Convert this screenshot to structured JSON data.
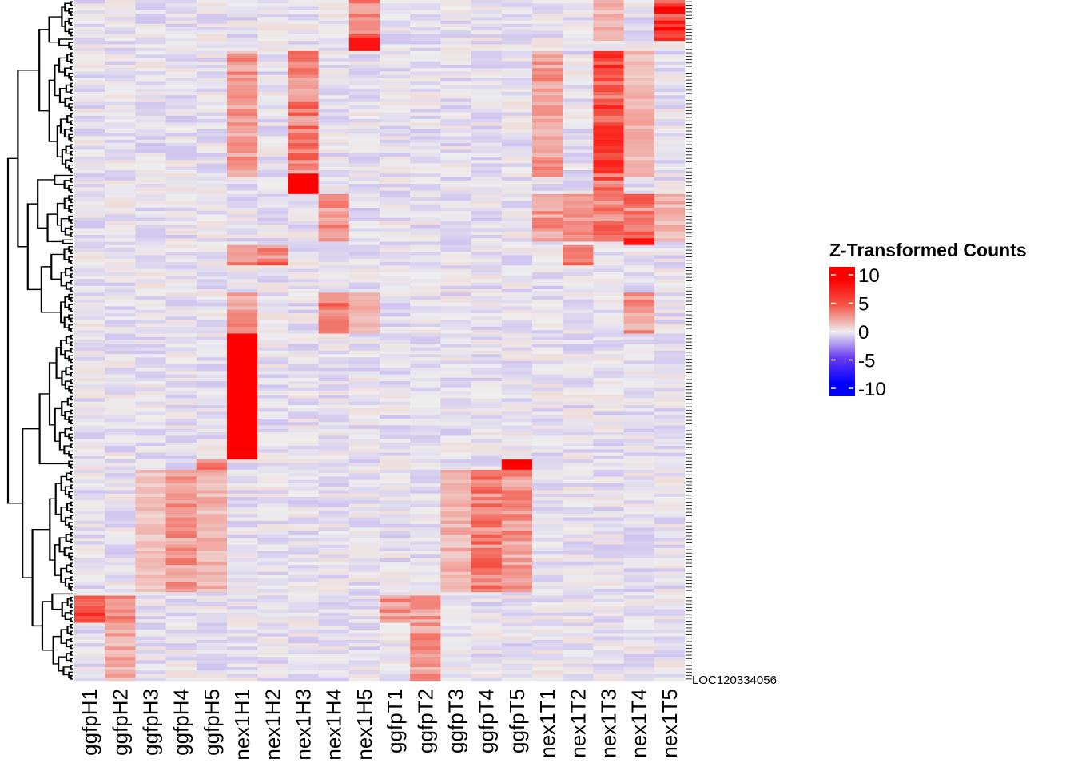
{
  "chart_data": {
    "type": "heatmap",
    "title": "",
    "columns": [
      "ggfpH1",
      "ggfpH2",
      "ggfpH3",
      "ggfpH4",
      "ggfpH5",
      "nex1H1",
      "nex1H2",
      "nex1H3",
      "nex1H4",
      "nex1H5",
      "ggfpT1",
      "ggfpT2",
      "ggfpT3",
      "ggfpT4",
      "ggfpT5",
      "nex1T1",
      "nex1T2",
      "nex1T3",
      "nex1T4",
      "nex1T5"
    ],
    "n_rows": 200,
    "row_labels_visible": [
      "LOC120334056"
    ],
    "row_dendrogram": true,
    "clusters": [
      {
        "rows": [
          0,
          12
        ],
        "values": {
          "nex1H5": 4,
          "nex1T5": 8,
          "nex1T3": 2
        }
      },
      {
        "rows": [
          11,
          15
        ],
        "values": {
          "nex1H5": 9
        }
      },
      {
        "rows": [
          15,
          52
        ],
        "values": {
          "nex1H1": 3,
          "nex1H3": 4,
          "nex1T1": 3,
          "nex1T3": 6,
          "nex1T4": 2
        }
      },
      {
        "rows": [
          51,
          57
        ],
        "values": {
          "nex1H3": 10,
          "nex1T3": 5
        }
      },
      {
        "rows": [
          57,
          71
        ],
        "values": {
          "nex1H4": 3,
          "nex1T1": 3,
          "nex1T2": 3,
          "nex1T3": 4,
          "nex1T4": 4,
          "nex1T5": 2
        }
      },
      {
        "rows": [
          70,
          72
        ],
        "values": {
          "nex1T4": 9
        }
      },
      {
        "rows": [
          72,
          78
        ],
        "values": {
          "nex1H1": 3,
          "nex1H2": 4,
          "nex1T2": 4
        }
      },
      {
        "rows": [
          86,
          98
        ],
        "values": {
          "nex1H4": 4,
          "nex1T4": 3,
          "nex1H1": 3,
          "nex1H5": 2
        }
      },
      {
        "rows": [
          98,
          135
        ],
        "values": {
          "nex1H1": 10
        }
      },
      {
        "rows": [
          135,
          138
        ],
        "values": {
          "ggfpH5": 5,
          "ggfpT5": 10
        }
      },
      {
        "rows": [
          138,
          174
        ],
        "values": {
          "ggfpH4": 3,
          "ggfpH5": 2,
          "ggfpT4": 4,
          "ggfpT5": 3,
          "ggfpT3": 2,
          "ggfpH3": 1.5
        }
      },
      {
        "rows": [
          175,
          183
        ],
        "values": {
          "ggfpH1": 6,
          "ggfpH2": 3,
          "ggfpT1": 3,
          "ggfpT2": 3
        }
      },
      {
        "rows": [
          183,
          200
        ],
        "values": {
          "ggfpT2": 3,
          "ggfpH2": 2.5
        }
      }
    ],
    "legend": {
      "title": "Z-Transformed Counts",
      "ticks": [
        10,
        5,
        0,
        -5,
        -10
      ],
      "tick_labels": [
        "10",
        "5",
        "0",
        "-5",
        "-10"
      ],
      "range": [
        -10,
        10
      ],
      "placement": "right"
    },
    "colors": {
      "low": "#0000FF",
      "mid_low": "#6A3CF2",
      "mid": "#EEEEEE",
      "mid_high": "#F4584A",
      "high": "#FF0000"
    }
  }
}
